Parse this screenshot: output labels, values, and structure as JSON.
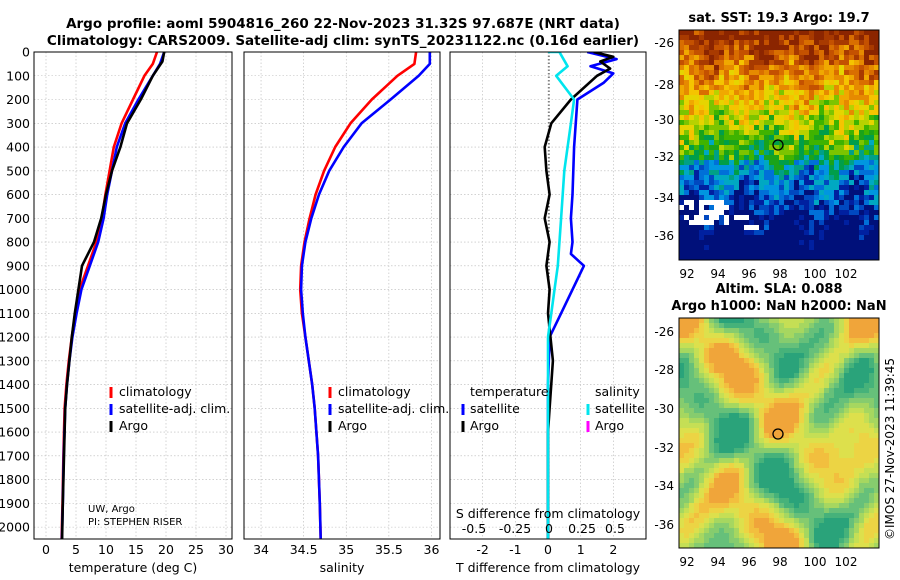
{
  "header": {
    "line1": "Argo profile: aoml 5904816_260 22-Nov-2023 31.32S 97.687E (NRT data)",
    "line2": "Climatology: CARS2009. Satellite-adj clim: synTS_20231122.nc (0.16d earlier)"
  },
  "colors": {
    "climatology": "#ff0000",
    "satellite": "#0000ff",
    "argo": "#000000",
    "sal_satellite": "#00e5ee",
    "sal_argo": "#ff00ff"
  },
  "chart_data": [
    {
      "type": "line",
      "name": "temperature",
      "xlabel": "temperature (deg C)",
      "xlim": [
        -2,
        31
      ],
      "xticks": [
        0,
        5,
        10,
        15,
        20,
        25,
        30
      ],
      "ylim": [
        0,
        2050
      ],
      "yticks": [
        0,
        100,
        200,
        300,
        400,
        500,
        600,
        700,
        800,
        900,
        1000,
        1100,
        1200,
        1300,
        1400,
        1500,
        1600,
        1700,
        1800,
        1900,
        2000
      ],
      "legend": [
        "climatology",
        "satellite-adj. clim.",
        "Argo"
      ],
      "annotation": [
        "UW, Argo",
        "PI: STEPHEN RISER"
      ],
      "series": [
        {
          "name": "climatology",
          "color": "climatology",
          "x": [
            18.5,
            17.8,
            16.4,
            14.5,
            12.6,
            11.3,
            10.6,
            9.9,
            9.3,
            8.4,
            7.0,
            5.6,
            4.9,
            4.3,
            3.8,
            3.4,
            3.1,
            2.9,
            2.75,
            2.6
          ],
          "y": [
            0,
            50,
            100,
            200,
            300,
            400,
            500,
            600,
            700,
            800,
            900,
            1000,
            1100,
            1200,
            1300,
            1400,
            1500,
            1700,
            1900,
            2050
          ]
        },
        {
          "name": "satellite-adj. clim.",
          "color": "satellite",
          "x": [
            19.7,
            19.0,
            17.8,
            15.4,
            13.2,
            11.8,
            11.0,
            10.2,
            9.6,
            8.7,
            7.3,
            5.9,
            5.1,
            4.4,
            3.9,
            3.5,
            3.2,
            2.95,
            2.8,
            2.65
          ],
          "y": [
            0,
            50,
            100,
            200,
            300,
            400,
            500,
            600,
            700,
            800,
            900,
            1000,
            1100,
            1200,
            1300,
            1400,
            1500,
            1700,
            1900,
            2050
          ]
        },
        {
          "name": "Argo",
          "color": "argo",
          "x": [
            19.7,
            19.4,
            17.8,
            15.8,
            13.5,
            12.4,
            11.0,
            10.0,
            9.2,
            8.0,
            6.0,
            5.4,
            4.8,
            4.3,
            3.9,
            3.5,
            3.2,
            3.0,
            2.8,
            2.68
          ],
          "y": [
            0,
            40,
            100,
            200,
            300,
            400,
            500,
            600,
            700,
            800,
            900,
            1000,
            1100,
            1200,
            1300,
            1400,
            1500,
            1700,
            1900,
            2050
          ]
        }
      ]
    },
    {
      "type": "line",
      "name": "salinity",
      "xlabel": "salinity",
      "xlim": [
        33.8,
        36.1
      ],
      "xticks": [
        34,
        34.5,
        35,
        35.5,
        36
      ],
      "ylim": [
        0,
        2050
      ],
      "legend": [
        "climatology",
        "satellite-adj. clim.",
        "Argo"
      ],
      "series": [
        {
          "name": "climatology",
          "color": "climatology",
          "x": [
            35.82,
            35.8,
            35.6,
            35.3,
            35.05,
            34.87,
            34.74,
            34.64,
            34.57,
            34.51,
            34.47,
            34.46,
            34.48,
            34.52,
            34.56,
            34.6,
            34.63,
            34.67,
            34.69,
            34.7
          ],
          "y": [
            0,
            50,
            100,
            200,
            300,
            400,
            500,
            600,
            700,
            800,
            900,
            1000,
            1100,
            1200,
            1300,
            1400,
            1500,
            1700,
            1900,
            2050
          ]
        },
        {
          "name": "satellite-adj. clim.",
          "color": "satellite",
          "x": [
            35.98,
            35.98,
            35.85,
            35.52,
            35.18,
            34.97,
            34.8,
            34.68,
            34.59,
            34.52,
            34.48,
            34.47,
            34.49,
            34.52,
            34.56,
            34.6,
            34.63,
            34.67,
            34.69,
            34.7
          ],
          "y": [
            0,
            50,
            100,
            200,
            300,
            400,
            500,
            600,
            700,
            800,
            900,
            1000,
            1100,
            1200,
            1300,
            1400,
            1500,
            1700,
            1900,
            2050
          ]
        }
      ]
    },
    {
      "type": "line",
      "name": "difference",
      "xlabel": "T difference from climatology",
      "xlim": [
        -3,
        3
      ],
      "xticks": [
        -2,
        -1,
        0,
        1,
        2
      ],
      "top_xlabel": "S difference from climatology",
      "top_xticks": [
        "-0.5",
        "-0.25",
        "0",
        "0.25",
        "0.5"
      ],
      "ylim": [
        0,
        2050
      ],
      "legend_titles": [
        "temperature",
        "salinity"
      ],
      "legend_temperature": [
        "satellite",
        "Argo"
      ],
      "legend_salinity": [
        "satellite",
        "Argo"
      ],
      "series": [
        {
          "name": "T satellite",
          "color": "satellite",
          "x": [
            1.2,
            2.1,
            1.3,
            2.0,
            1.7,
            0.9,
            0.8,
            0.75,
            0.7,
            0.75,
            0.7,
            1.1,
            0.75,
            0.4,
            0.05,
            0.0,
            0.0,
            0.0
          ],
          "y": [
            0,
            30,
            60,
            90,
            130,
            200,
            400,
            600,
            700,
            800,
            850,
            900,
            1000,
            1100,
            1200,
            1400,
            1700,
            2050
          ]
        },
        {
          "name": "T Argo",
          "color": "argo",
          "x": [
            1.4,
            2.0,
            1.6,
            1.9,
            1.5,
            0.7,
            0.1,
            -0.1,
            -0.05,
            0.05,
            -0.1,
            0.05,
            -0.05,
            0.05,
            0.0,
            0.15,
            0.05,
            0.0,
            0.0,
            0.0
          ],
          "y": [
            0,
            20,
            40,
            70,
            100,
            200,
            300,
            400,
            500,
            600,
            700,
            800,
            900,
            1000,
            1100,
            1300,
            1500,
            1600,
            1800,
            2050
          ]
        },
        {
          "name": "S satellite",
          "color": "sal_satellite",
          "x": [
            0.0,
            0.35,
            0.6,
            0.25,
            0.8,
            0.7,
            0.5,
            0.4,
            0.3,
            0.2,
            0.1,
            0.0,
            0.0,
            0.0
          ],
          "y": [
            0,
            0,
            60,
            100,
            200,
            300,
            500,
            700,
            900,
            1000,
            1100,
            1200,
            1500,
            2050
          ]
        }
      ]
    }
  ],
  "sst_map": {
    "title": "sat. SST: 19.3 Argo: 19.7",
    "xticks": [
      "92",
      "94",
      "96",
      "98",
      "100",
      "102"
    ],
    "yticks": [
      "-26",
      "-28",
      "-30",
      "-32",
      "-34",
      "-36"
    ],
    "argo_lon": 97.687,
    "argo_lat": -31.32
  },
  "sla_map": {
    "title1": "Altim. SLA: 0.088",
    "title2": "Argo h1000: NaN h2000: NaN",
    "xticks": [
      "92",
      "94",
      "96",
      "98",
      "100",
      "102"
    ],
    "yticks": [
      "-26",
      "-28",
      "-30",
      "-32",
      "-34",
      "-36"
    ],
    "argo_lon": 97.687,
    "argo_lat": -31.32
  },
  "credit": "©IMOS 27-Nov-2023 11:39:45"
}
